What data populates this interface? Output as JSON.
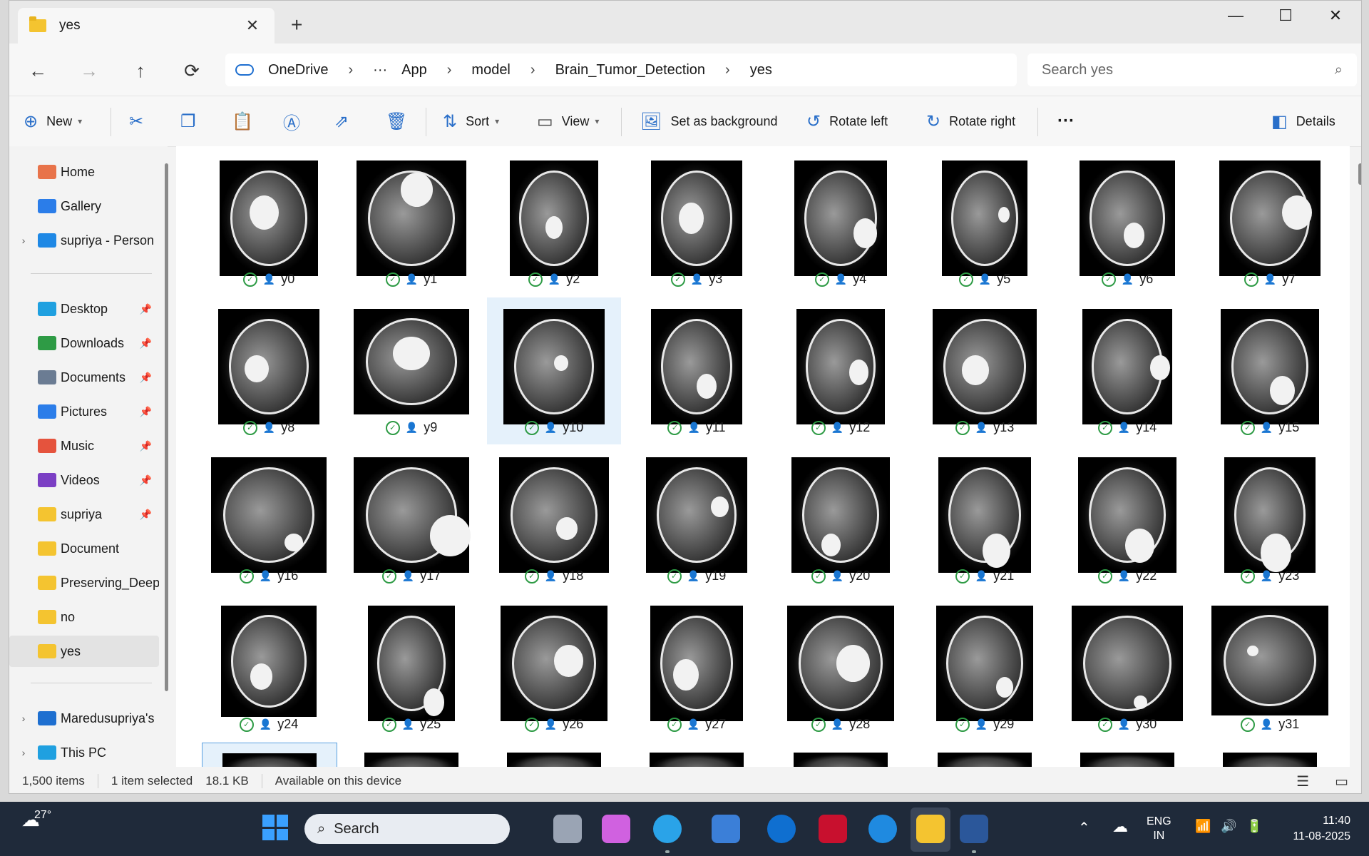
{
  "window": {
    "tab_title": "yes",
    "new_tab": "+",
    "controls": {
      "minimize": "—",
      "maximize": "☐",
      "close": "✕"
    }
  },
  "nav": {
    "back": "←",
    "forward": "→",
    "up": "↑",
    "refresh": "⟳",
    "breadcrumb": [
      "OneDrive",
      "···",
      "App",
      "model",
      "Brain_Tumor_Detection",
      "yes"
    ],
    "search_placeholder": "Search yes"
  },
  "toolbar": {
    "new_label": "New",
    "sort_label": "Sort",
    "view_label": "View",
    "set_background_label": "Set as background",
    "rotate_left_label": "Rotate left",
    "rotate_right_label": "Rotate right",
    "more_label": "···",
    "details_label": "Details"
  },
  "sidebar": {
    "items": [
      {
        "label": "Home",
        "color": "#e8734a"
      },
      {
        "label": "Gallery",
        "color": "#2b7de9"
      },
      {
        "label": "supriya - Person",
        "color": "#1e88e5"
      },
      {
        "label": "Desktop",
        "color": "#1fa0e0"
      },
      {
        "label": "Downloads",
        "color": "#2e9b45"
      },
      {
        "label": "Documents",
        "color": "#6b7c93"
      },
      {
        "label": "Pictures",
        "color": "#2b7de9"
      },
      {
        "label": "Music",
        "color": "#e5533d"
      },
      {
        "label": "Videos",
        "color": "#7b3fc4"
      },
      {
        "label": "supriya",
        "color": "#f4c430"
      },
      {
        "label": "Document",
        "color": "#f4c430"
      },
      {
        "label": "Preserving_Deep",
        "color": "#f4c430"
      },
      {
        "label": "no",
        "color": "#f4c430"
      },
      {
        "label": "yes",
        "color": "#f4c430"
      },
      {
        "label": "Maredusupriya's",
        "color": "#1e6fd0"
      },
      {
        "label": "This PC",
        "color": "#1fa0e0"
      }
    ]
  },
  "files": [
    "y0",
    "y1",
    "y2",
    "y3",
    "y4",
    "y5",
    "y6",
    "y7",
    "y8",
    "y9",
    "y10",
    "y11",
    "y12",
    "y13",
    "y14",
    "y15",
    "y16",
    "y17",
    "y18",
    "y19",
    "y20",
    "y21",
    "y22",
    "y23",
    "y24",
    "y25",
    "y26",
    "y27",
    "y28",
    "y29",
    "y30",
    "y31"
  ],
  "selected_file": "y10",
  "status": {
    "count": "1,500 items",
    "selection": "1 item selected",
    "size": "18.1 KB",
    "availability": "Available on this device"
  },
  "taskbar": {
    "weather": "27°",
    "search": "Search",
    "lang1": "ENG",
    "lang2": "IN",
    "time": "11:40",
    "date": "11-08-2025"
  }
}
